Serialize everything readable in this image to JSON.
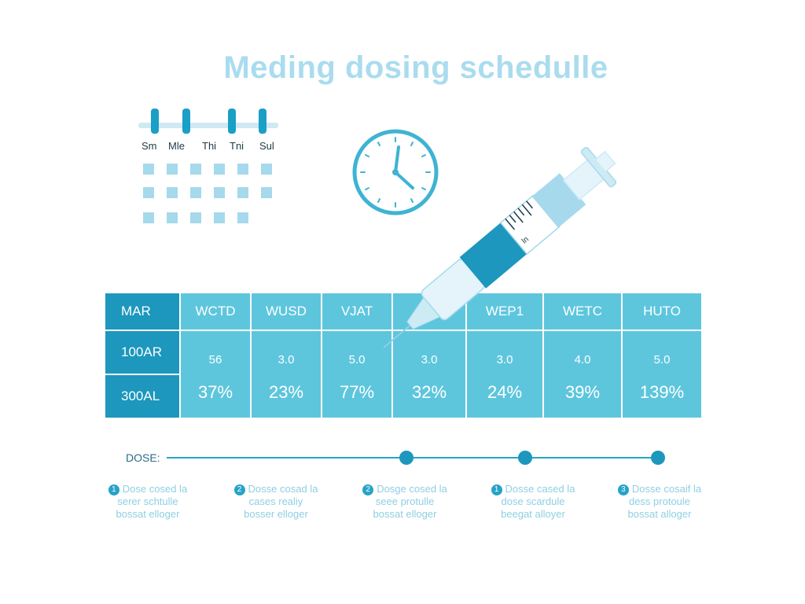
{
  "title": "Meding dosing schedulle",
  "calendar": {
    "days": [
      "Sm",
      "Mle",
      "Thi",
      "Tni",
      "Sul"
    ]
  },
  "table": {
    "headers": [
      "MAR",
      "WCTD",
      "WUSD",
      "VJAT",
      "",
      "WEP1",
      "WETC",
      "HUTO"
    ],
    "rows": [
      {
        "label": "100AR",
        "values": [
          "56",
          "3.0",
          "5.0",
          "3.0",
          "3.0",
          "4.0",
          "5.0"
        ]
      },
      {
        "label": "300AL",
        "values": [
          "37%",
          "23%",
          "77%",
          "32%",
          "24%",
          "39%",
          "139%"
        ]
      }
    ]
  },
  "dose": {
    "label": "DOSE:"
  },
  "notes": [
    {
      "num": "1",
      "lines": [
        "Dose cosed la",
        "serer schtulle",
        "bossat elloger"
      ]
    },
    {
      "num": "2",
      "lines": [
        "Dosse cosad la",
        "cases realiy",
        "bosser elloger"
      ]
    },
    {
      "num": "2",
      "lines": [
        "Dosge cosed la",
        "seee protulle",
        "bossat elloger"
      ]
    },
    {
      "num": "1",
      "lines": [
        "Dosse cased la",
        "dose scardule",
        "beegat alloyer"
      ]
    },
    {
      "num": "3",
      "lines": [
        "Dosse cosaif la",
        "dess protoule",
        "bossat alloger"
      ]
    }
  ],
  "colors": {
    "title": "#a9dcef",
    "accent": "#1d97bd",
    "cell": "#5dc6dd",
    "light": "#a6d9ec"
  },
  "syringe_label": "ln"
}
